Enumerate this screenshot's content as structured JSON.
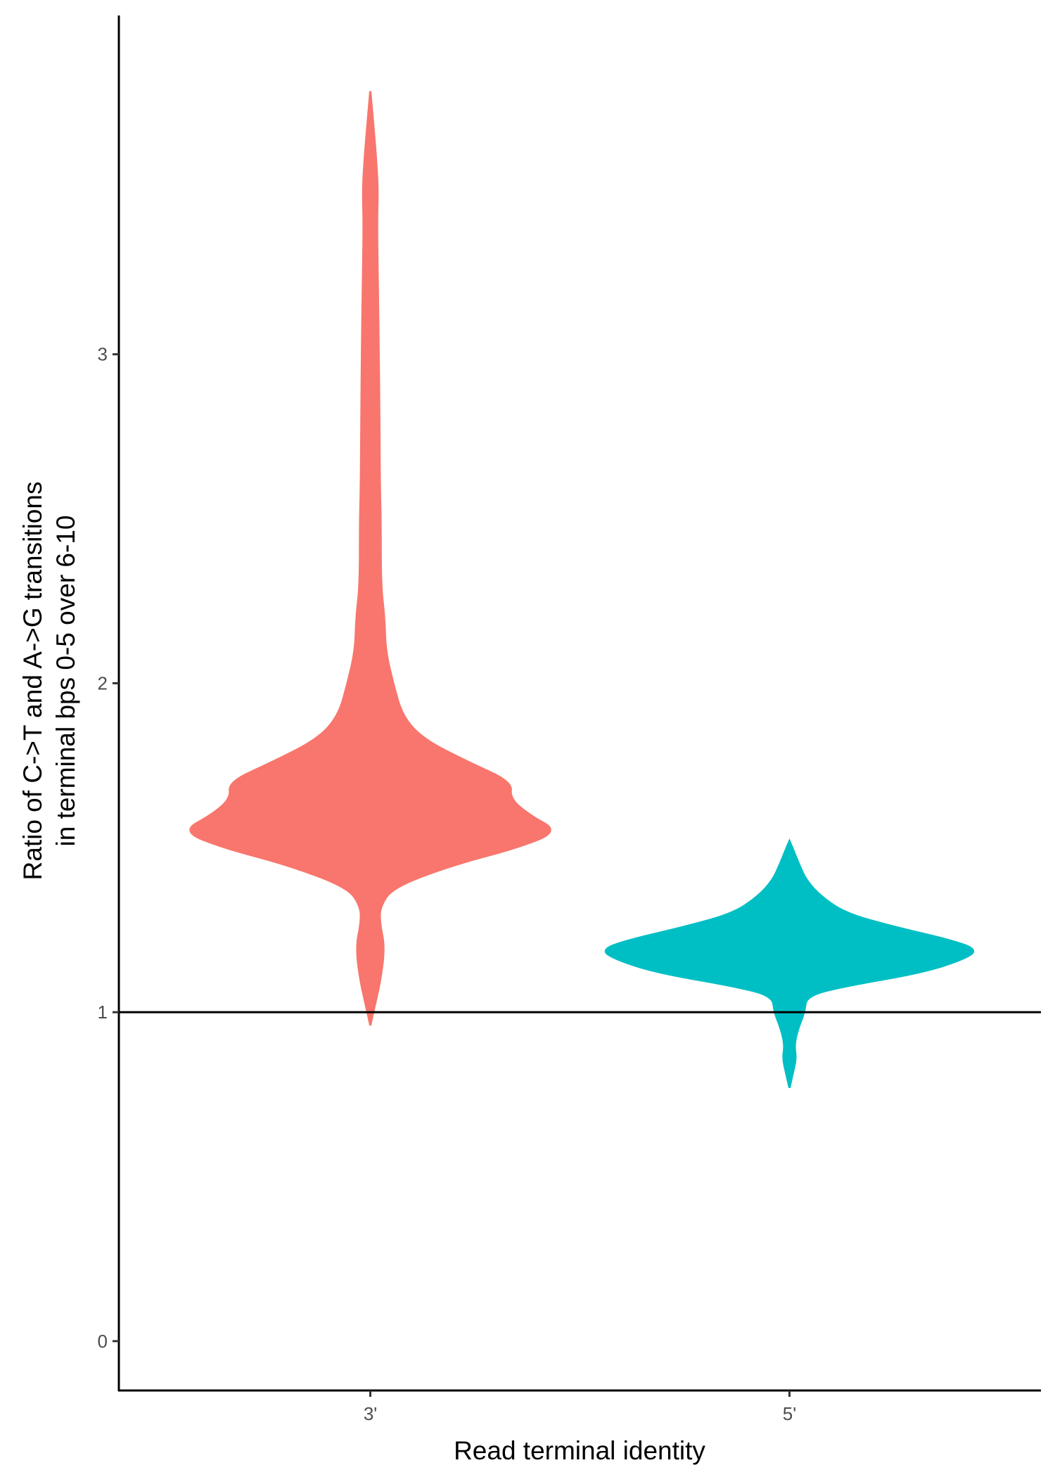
{
  "chart_data": {
    "type": "violin",
    "xlabel": "Read terminal identity",
    "ylabel_lines": [
      "Ratio of C->T and A->G transitions",
      "in terminal bps 0-5 over 6-10"
    ],
    "categories": [
      "3'",
      "5'"
    ],
    "ylim": [
      -0.15,
      4.03
    ],
    "yticks": [
      0,
      1,
      2,
      3
    ],
    "reference_line": {
      "y": 1,
      "color": "#000000"
    },
    "grid": false,
    "legend": "none",
    "series": [
      {
        "category": "3'",
        "color": "#F8766D",
        "y_range": [
          0.96,
          3.8
        ],
        "profile": [
          [
            0.96,
            0.0
          ],
          [
            1.0,
            0.015
          ],
          [
            1.1,
            0.055
          ],
          [
            1.2,
            0.075
          ],
          [
            1.27,
            0.05
          ],
          [
            1.32,
            0.05
          ],
          [
            1.38,
            0.12
          ],
          [
            1.45,
            0.45
          ],
          [
            1.5,
            0.78
          ],
          [
            1.55,
            1.0
          ],
          [
            1.6,
            0.84
          ],
          [
            1.65,
            0.74
          ],
          [
            1.7,
            0.75
          ],
          [
            1.76,
            0.52
          ],
          [
            1.83,
            0.28
          ],
          [
            1.9,
            0.17
          ],
          [
            2.0,
            0.12
          ],
          [
            2.1,
            0.08
          ],
          [
            2.2,
            0.075
          ],
          [
            2.3,
            0.055
          ],
          [
            2.5,
            0.055
          ],
          [
            2.6,
            0.05
          ],
          [
            2.8,
            0.048
          ],
          [
            3.0,
            0.045
          ],
          [
            3.2,
            0.04
          ],
          [
            3.4,
            0.035
          ],
          [
            3.5,
            0.04
          ],
          [
            3.6,
            0.03
          ],
          [
            3.7,
            0.015
          ],
          [
            3.8,
            0.0
          ]
        ]
      },
      {
        "category": "5'",
        "color": "#00BFC4",
        "y_range": [
          0.77,
          1.52
        ],
        "profile": [
          [
            0.77,
            0.0
          ],
          [
            0.82,
            0.02
          ],
          [
            0.86,
            0.035
          ],
          [
            0.9,
            0.025
          ],
          [
            0.95,
            0.045
          ],
          [
            1.0,
            0.08
          ],
          [
            1.05,
            0.09
          ],
          [
            1.08,
            0.3
          ],
          [
            1.12,
            0.7
          ],
          [
            1.16,
            0.92
          ],
          [
            1.19,
            1.0
          ],
          [
            1.22,
            0.85
          ],
          [
            1.26,
            0.55
          ],
          [
            1.3,
            0.3
          ],
          [
            1.35,
            0.17
          ],
          [
            1.4,
            0.09
          ],
          [
            1.45,
            0.05
          ],
          [
            1.5,
            0.015
          ],
          [
            1.52,
            0.0
          ]
        ]
      }
    ]
  }
}
